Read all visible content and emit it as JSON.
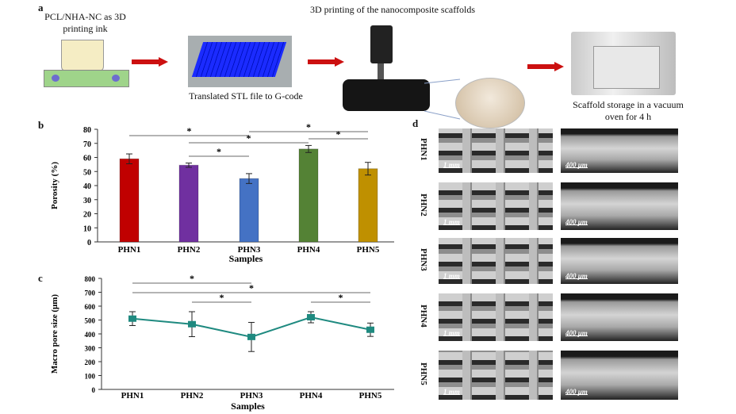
{
  "panel_a": {
    "label": "a",
    "step1": "PCL/NHA-NC as 3D printing ink",
    "step2": "Translated STL file to G-code",
    "step3": "3D printing of the nanocomposite scaffolds",
    "step4": "Scaffold storage in a vacuum oven for 4 h",
    "arrow_color": "#cc1010"
  },
  "panel_b_label": "b",
  "panel_c_label": "c",
  "panel_d": {
    "label": "d",
    "rows": [
      "PHN1",
      "PHN2",
      "PHN3",
      "PHN4",
      "PHN5"
    ],
    "scale_low_mag": "1 mm",
    "scale_high_mag": "400 μm"
  },
  "chart_data": [
    {
      "type": "bar",
      "panel": "b",
      "categories": [
        "PHN1",
        "PHN2",
        "PHN3",
        "PHN4",
        "PHN5"
      ],
      "values": [
        59,
        54.5,
        45,
        66,
        52
      ],
      "errors": [
        3.5,
        1.5,
        3.5,
        2.5,
        4.5
      ],
      "colors": [
        "#c00000",
        "#7030a0",
        "#4472c4",
        "#548235",
        "#bf9000"
      ],
      "xlabel": "Samples",
      "ylabel": "Porosity (%)",
      "ylim": [
        0,
        80
      ],
      "yticks": [
        0,
        10,
        20,
        30,
        40,
        50,
        60,
        70,
        80
      ],
      "significance": [
        {
          "pair": [
            "PHN1",
            "PHN3"
          ],
          "mark": "*"
        },
        {
          "pair": [
            "PHN3",
            "PHN5"
          ],
          "mark": "*"
        },
        {
          "pair": [
            "PHN2",
            "PHN4"
          ],
          "mark": "*"
        },
        {
          "pair": [
            "PHN4",
            "PHN5"
          ],
          "mark": "*"
        },
        {
          "pair": [
            "PHN2",
            "PHN3"
          ],
          "mark": "*"
        }
      ],
      "grid": false
    },
    {
      "type": "line",
      "panel": "c",
      "categories": [
        "PHN1",
        "PHN2",
        "PHN3",
        "PHN4",
        "PHN5"
      ],
      "values": [
        510,
        470,
        378,
        520,
        430
      ],
      "errors": [
        50,
        90,
        105,
        40,
        48
      ],
      "color": "#1f8a80",
      "xlabel": "Samples",
      "ylabel": "Macro pore size (μm)",
      "ylim": [
        0,
        800
      ],
      "yticks": [
        0,
        100,
        200,
        300,
        400,
        500,
        600,
        700,
        800
      ],
      "significance": [
        {
          "pair": [
            "PHN1",
            "PHN3"
          ],
          "mark": "*"
        },
        {
          "pair": [
            "PHN1",
            "PHN5"
          ],
          "mark": "*"
        },
        {
          "pair": [
            "PHN2",
            "PHN3"
          ],
          "mark": "*"
        },
        {
          "pair": [
            "PHN4",
            "PHN5"
          ],
          "mark": "*"
        }
      ],
      "grid": false
    }
  ]
}
